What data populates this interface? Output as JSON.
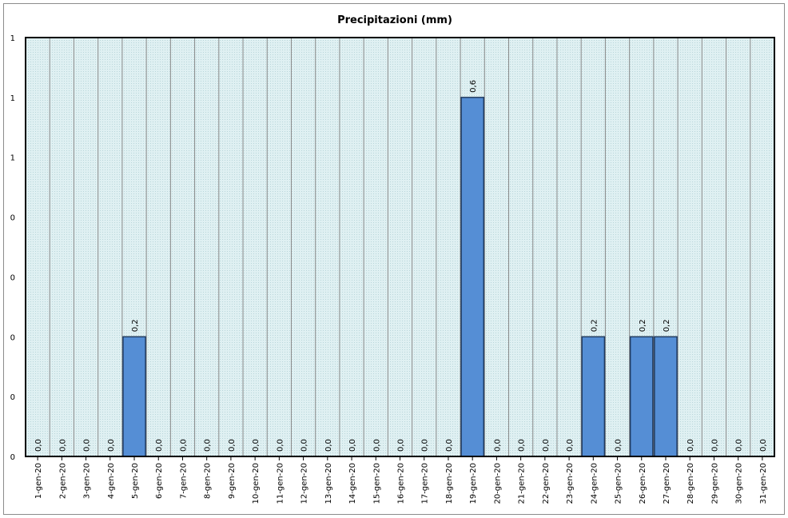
{
  "chart_data": {
    "type": "bar",
    "title": "Precipitazioni (mm)",
    "categories": [
      "1-gen-20",
      "2-gen-20",
      "3-gen-20",
      "4-gen-20",
      "5-gen-20",
      "6-gen-20",
      "7-gen-20",
      "8-gen-20",
      "9-gen-20",
      "10-gen-20",
      "11-gen-20",
      "12-gen-20",
      "13-gen-20",
      "14-gen-20",
      "15-gen-20",
      "16-gen-20",
      "17-gen-20",
      "18-gen-20",
      "19-gen-20",
      "20-gen-20",
      "21-gen-20",
      "22-gen-20",
      "23-gen-20",
      "24-gen-20",
      "25-gen-20",
      "26-gen-20",
      "27-gen-20",
      "28-gen-20",
      "29-gen-20",
      "30-gen-20",
      "31-gen-20"
    ],
    "values": [
      0,
      0,
      0,
      0,
      0.2,
      0,
      0,
      0,
      0,
      0,
      0,
      0,
      0,
      0,
      0,
      0,
      0,
      0,
      0.6,
      0,
      0,
      0,
      0,
      0.2,
      0,
      0.2,
      0.2,
      0,
      0,
      0,
      0
    ],
    "data_labels": [
      "0,0",
      "0,0",
      "0,0",
      "0,0",
      "0,2",
      "0,0",
      "0,0",
      "0,0",
      "0,0",
      "0,0",
      "0,0",
      "0,0",
      "0,0",
      "0,0",
      "0,0",
      "0,0",
      "0,0",
      "0,0",
      "0,6",
      "0,0",
      "0,0",
      "0,0",
      "0,0",
      "0,2",
      "0,0",
      "0,2",
      "0,2",
      "0,0",
      "0,0",
      "0,0",
      "0,0"
    ],
    "ylim": [
      0,
      0.7
    ],
    "y_tick_values": [
      0,
      0.1,
      0.2,
      0.3,
      0.4,
      0.5,
      0.6,
      0.7
    ],
    "y_tick_labels": [
      "0",
      "0",
      "0",
      "0",
      "0",
      "1",
      "1",
      "1"
    ],
    "grid": true,
    "colors": {
      "bar": "#558ed5",
      "bar_border": "#1f3a5f",
      "plot_bg": "#dff0f2"
    }
  }
}
